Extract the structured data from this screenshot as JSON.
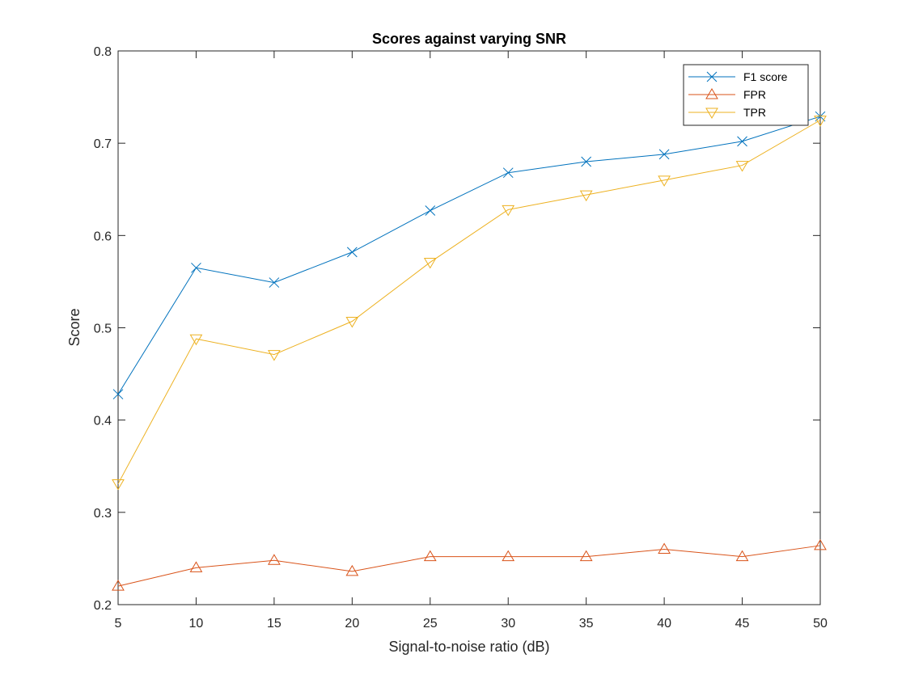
{
  "chart_data": {
    "type": "line",
    "title": "Scores against varying SNR",
    "xlabel": "Signal-to-noise ratio (dB)",
    "ylabel": "Score",
    "xlim": [
      5,
      50
    ],
    "ylim": [
      0.2,
      0.8
    ],
    "xticks": [
      5,
      10,
      15,
      20,
      25,
      30,
      35,
      40,
      45,
      50
    ],
    "yticks": [
      0.2,
      0.3,
      0.4,
      0.5,
      0.6,
      0.7,
      0.8
    ],
    "ytick_labels": [
      "0.2",
      "0.3",
      "0.4",
      "0.5",
      "0.6",
      "0.7",
      "0.8"
    ],
    "grid": false,
    "legend_position": "top-right",
    "x": [
      5,
      10,
      15,
      20,
      25,
      30,
      35,
      40,
      45,
      50
    ],
    "series": [
      {
        "name": "F1 score",
        "marker": "x",
        "color": "#0072BD",
        "values": [
          0.428,
          0.565,
          0.549,
          0.582,
          0.627,
          0.668,
          0.68,
          0.688,
          0.702,
          0.729
        ]
      },
      {
        "name": "FPR",
        "marker": "triangle-up",
        "color": "#D95319",
        "values": [
          0.22,
          0.24,
          0.248,
          0.236,
          0.252,
          0.252,
          0.252,
          0.26,
          0.252,
          0.264
        ]
      },
      {
        "name": "TPR",
        "marker": "triangle-down",
        "color": "#EDB120",
        "values": [
          0.331,
          0.488,
          0.471,
          0.507,
          0.571,
          0.628,
          0.644,
          0.66,
          0.676,
          0.725
        ]
      }
    ]
  }
}
